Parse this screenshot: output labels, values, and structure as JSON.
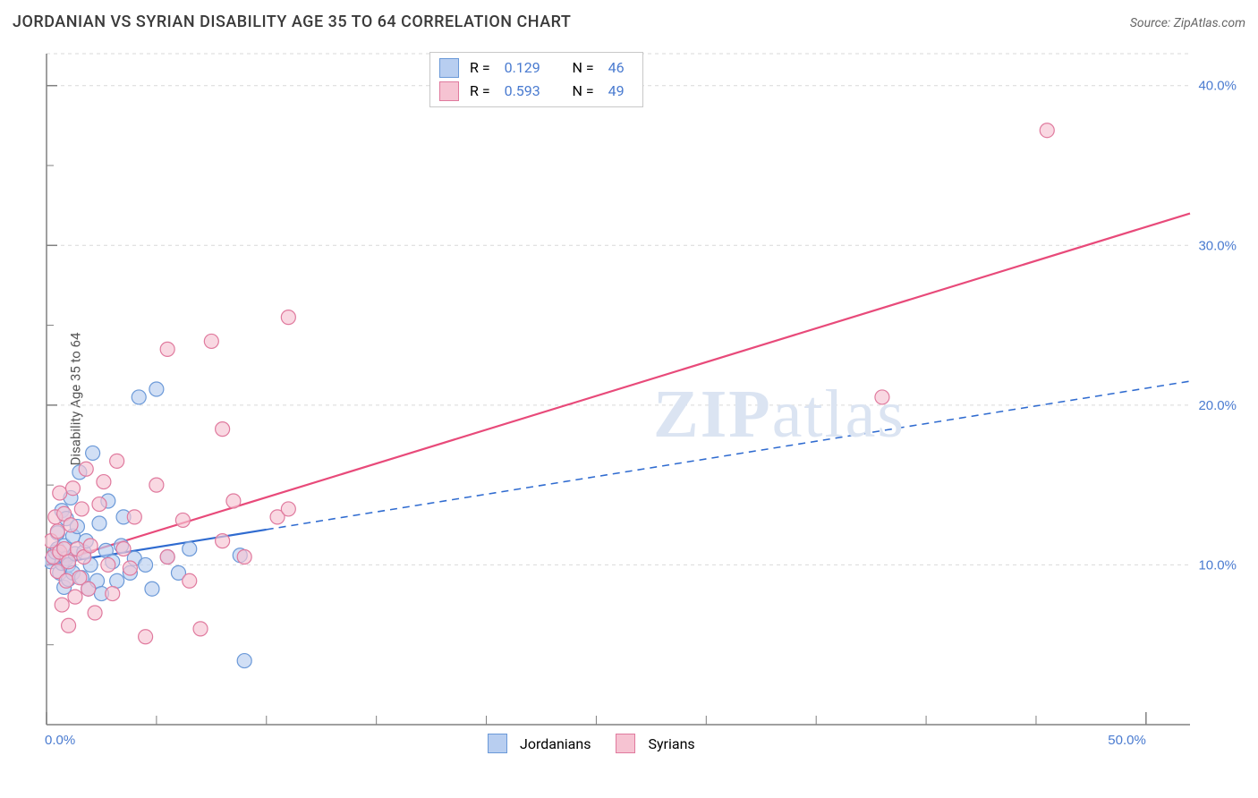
{
  "title": "JORDANIAN VS SYRIAN DISABILITY AGE 35 TO 64 CORRELATION CHART",
  "source_label": "Source: ZipAtlas.com",
  "ylabel": "Disability Age 35 to 64",
  "watermark": {
    "zip": "ZIP",
    "atlas": "atlas"
  },
  "chart": {
    "type": "scatter",
    "xlim": [
      0,
      52
    ],
    "ylim": [
      0,
      42
    ],
    "background_color": "#ffffff",
    "grid_color": "#d9d9d9",
    "axis_color": "#808080",
    "x_ticks_major": [
      0,
      50
    ],
    "x_tick_labels": [
      "0.0%",
      "50.0%"
    ],
    "x_ticks_minor": [
      5,
      10,
      15,
      20,
      25,
      30,
      35,
      40,
      45
    ],
    "y_ticks_major": [
      10,
      20,
      30,
      40
    ],
    "y_tick_labels": [
      "10.0%",
      "20.0%",
      "30.0%",
      "40.0%"
    ],
    "y_ticks_minor": [
      5,
      15,
      25,
      35
    ],
    "marker_radius": 8,
    "marker_stroke_width": 1.2,
    "series": [
      {
        "name": "Jordanians",
        "fill": "#b8cef0",
        "stroke": "#6b99d8",
        "fill_opacity": 0.65,
        "r_value": "0.129",
        "n_value": "46",
        "trend": {
          "x1": 0,
          "y1": 10.0,
          "x2": 52,
          "y2": 21.5,
          "solid_to_x": 10,
          "stroke": "#2f6bd0",
          "width": 2.2
        },
        "points": [
          [
            0.2,
            10.2
          ],
          [
            0.3,
            10.5
          ],
          [
            0.4,
            10.8
          ],
          [
            0.5,
            11.0
          ],
          [
            0.5,
            12.0
          ],
          [
            0.6,
            9.5
          ],
          [
            0.7,
            10.1
          ],
          [
            0.7,
            13.4
          ],
          [
            0.8,
            8.6
          ],
          [
            0.8,
            11.2
          ],
          [
            0.9,
            10.4
          ],
          [
            0.9,
            12.9
          ],
          [
            1.0,
            9.1
          ],
          [
            1.0,
            10.0
          ],
          [
            1.1,
            14.2
          ],
          [
            1.2,
            9.5
          ],
          [
            1.2,
            11.8
          ],
          [
            1.3,
            10.7
          ],
          [
            1.4,
            12.4
          ],
          [
            1.5,
            15.8
          ],
          [
            1.6,
            9.2
          ],
          [
            1.7,
            10.8
          ],
          [
            1.8,
            11.5
          ],
          [
            1.9,
            8.5
          ],
          [
            2.0,
            10.0
          ],
          [
            2.1,
            17.0
          ],
          [
            2.3,
            9.0
          ],
          [
            2.4,
            12.6
          ],
          [
            2.5,
            8.2
          ],
          [
            2.7,
            10.9
          ],
          [
            2.8,
            14.0
          ],
          [
            3.0,
            10.2
          ],
          [
            3.2,
            9.0
          ],
          [
            3.4,
            11.2
          ],
          [
            3.5,
            13.0
          ],
          [
            3.8,
            9.5
          ],
          [
            4.0,
            10.4
          ],
          [
            4.2,
            20.5
          ],
          [
            4.5,
            10.0
          ],
          [
            4.8,
            8.5
          ],
          [
            5.0,
            21.0
          ],
          [
            5.5,
            10.5
          ],
          [
            6.0,
            9.5
          ],
          [
            6.5,
            11.0
          ],
          [
            8.8,
            10.6
          ],
          [
            9.0,
            4.0
          ]
        ]
      },
      {
        "name": "Syrians",
        "fill": "#f6c3d2",
        "stroke": "#e07a9e",
        "fill_opacity": 0.65,
        "r_value": "0.593",
        "n_value": "49",
        "trend": {
          "x1": 0,
          "y1": 10.0,
          "x2": 52,
          "y2": 32.0,
          "stroke": "#e84a7a",
          "width": 2.2
        },
        "points": [
          [
            0.2,
            11.5
          ],
          [
            0.3,
            10.5
          ],
          [
            0.4,
            13.0
          ],
          [
            0.5,
            9.6
          ],
          [
            0.5,
            12.1
          ],
          [
            0.6,
            10.8
          ],
          [
            0.6,
            14.5
          ],
          [
            0.7,
            7.5
          ],
          [
            0.8,
            11.0
          ],
          [
            0.8,
            13.2
          ],
          [
            0.9,
            9.0
          ],
          [
            1.0,
            10.2
          ],
          [
            1.0,
            6.2
          ],
          [
            1.1,
            12.5
          ],
          [
            1.2,
            14.8
          ],
          [
            1.3,
            8.0
          ],
          [
            1.4,
            11.0
          ],
          [
            1.5,
            9.2
          ],
          [
            1.6,
            13.5
          ],
          [
            1.7,
            10.5
          ],
          [
            1.8,
            16.0
          ],
          [
            1.9,
            8.5
          ],
          [
            2.0,
            11.2
          ],
          [
            2.2,
            7.0
          ],
          [
            2.4,
            13.8
          ],
          [
            2.6,
            15.2
          ],
          [
            2.8,
            10.0
          ],
          [
            3.0,
            8.2
          ],
          [
            3.2,
            16.5
          ],
          [
            3.5,
            11.0
          ],
          [
            3.8,
            9.8
          ],
          [
            4.0,
            13.0
          ],
          [
            4.5,
            5.5
          ],
          [
            5.0,
            15.0
          ],
          [
            5.5,
            23.5
          ],
          [
            5.5,
            10.5
          ],
          [
            6.2,
            12.8
          ],
          [
            6.5,
            9.0
          ],
          [
            7.0,
            6.0
          ],
          [
            7.5,
            24.0
          ],
          [
            8.0,
            11.5
          ],
          [
            8.0,
            18.5
          ],
          [
            8.5,
            14.0
          ],
          [
            9.0,
            10.5
          ],
          [
            10.5,
            13.0
          ],
          [
            11.0,
            25.5
          ],
          [
            11.0,
            13.5
          ],
          [
            38.0,
            20.5
          ],
          [
            45.5,
            37.2
          ]
        ]
      }
    ]
  },
  "legend_top": {
    "r_label": "R  =",
    "n_label": "N  ="
  },
  "legend_bottom_labels": [
    "Jordanians",
    "Syrians"
  ]
}
